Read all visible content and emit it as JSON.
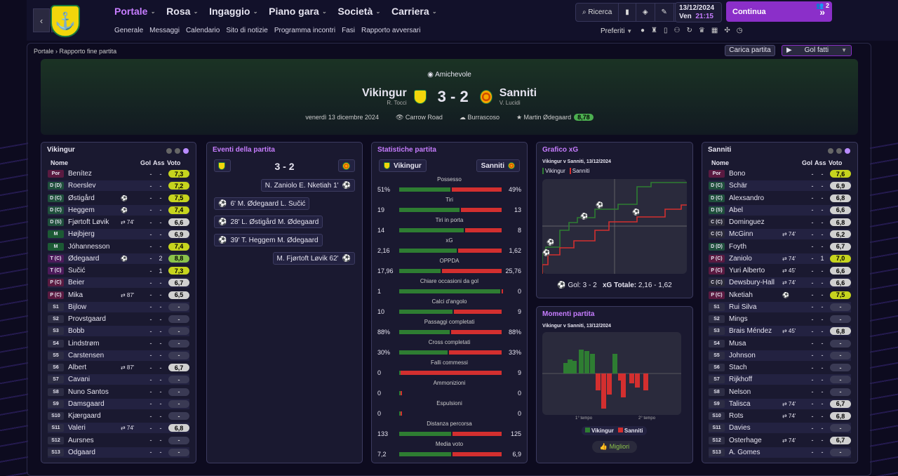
{
  "nav": {
    "menu": [
      "Portale",
      "Rosa",
      "Ingaggio",
      "Piano gara",
      "Società",
      "Carriera"
    ],
    "sub": [
      "Generale",
      "Messaggi",
      "Calendario",
      "Sito di notizie",
      "Programma incontri",
      "Fasi",
      "Rapporto avversari"
    ],
    "search": "Ricerca",
    "date": "13/12/2024",
    "day": "Ven",
    "time": "21:15",
    "continue": "Continua",
    "badge": "2",
    "prefs": "Preferiti"
  },
  "breadcrumb": [
    "Portale",
    "Rapporto fine partita"
  ],
  "buttons": {
    "load": "Carica partita",
    "goals": "Gol fatti"
  },
  "match": {
    "competition": "Amichevole",
    "home": "Vikingur",
    "home_mgr": "R. Tocci",
    "away": "Sanniti",
    "away_mgr": "V. Lucidi",
    "score": "3 - 2",
    "date": "venerdì 13 dicembre 2024",
    "venue": "Carrow Road",
    "weather": "Burrascoso",
    "potm": "Martin Ødegaard",
    "potm_rating": "8,78"
  },
  "home_panel": {
    "title": "Vikingur",
    "headers": [
      "Nome",
      "Gol",
      "Ass",
      "Voto"
    ],
    "players": [
      {
        "pos": "Por",
        "name": "Benítez",
        "ev": "",
        "g": "-",
        "a": "-",
        "r": "7,3",
        "c": "y"
      },
      {
        "pos": "D (D)",
        "name": "Roerslev",
        "ev": "",
        "g": "-",
        "a": "-",
        "r": "7,2",
        "c": "y"
      },
      {
        "pos": "D (C)",
        "name": "Østigård",
        "ev": "⚽",
        "g": "-",
        "a": "-",
        "r": "7,5",
        "c": "y"
      },
      {
        "pos": "D (C)",
        "name": "Heggem",
        "ev": "⚽",
        "g": "-",
        "a": "-",
        "r": "7,4",
        "c": "y"
      },
      {
        "pos": "D (S)",
        "name": "Fjørtoft Løvik",
        "ev": "⇄ 74'",
        "g": "-",
        "a": "-",
        "r": "6,6",
        "c": "w"
      },
      {
        "pos": "M",
        "name": "Højbjerg",
        "ev": "",
        "g": "-",
        "a": "-",
        "r": "6,9",
        "c": "w"
      },
      {
        "pos": "M",
        "name": "Jóhannesson",
        "ev": "",
        "g": "-",
        "a": "-",
        "r": "7,4",
        "c": "y"
      },
      {
        "pos": "T (C)",
        "name": "Ødegaard",
        "ev": "⚽",
        "g": "-",
        "a": "2",
        "r": "8,8",
        "c": "g2"
      },
      {
        "pos": "T (C)",
        "name": "Sučić",
        "ev": "",
        "g": "-",
        "a": "1",
        "r": "7,3",
        "c": "y"
      },
      {
        "pos": "P (C)",
        "name": "Beier",
        "ev": "",
        "g": "-",
        "a": "-",
        "r": "6,7",
        "c": "w"
      },
      {
        "pos": "P (C)",
        "name": "Mika",
        "ev": "⇄ 87'",
        "g": "-",
        "a": "-",
        "r": "6,5",
        "c": "w"
      },
      {
        "pos": "S1",
        "name": "Bijlow",
        "ev": "",
        "g": "-",
        "a": "-",
        "r": "-",
        "c": "w"
      },
      {
        "pos": "S2",
        "name": "Provstgaard",
        "ev": "",
        "g": "-",
        "a": "-",
        "r": "-",
        "c": "w"
      },
      {
        "pos": "S3",
        "name": "Bobb",
        "ev": "",
        "g": "-",
        "a": "-",
        "r": "-",
        "c": "w"
      },
      {
        "pos": "S4",
        "name": "Lindstrøm",
        "ev": "",
        "g": "-",
        "a": "-",
        "r": "-",
        "c": "w"
      },
      {
        "pos": "S5",
        "name": "Carstensen",
        "ev": "",
        "g": "-",
        "a": "-",
        "r": "-",
        "c": "w"
      },
      {
        "pos": "S6",
        "name": "Albert",
        "ev": "⇄ 87'",
        "g": "-",
        "a": "-",
        "r": "6,7",
        "c": "w"
      },
      {
        "pos": "S7",
        "name": "Cavani",
        "ev": "",
        "g": "-",
        "a": "-",
        "r": "-",
        "c": "w"
      },
      {
        "pos": "S8",
        "name": "Nuno Santos",
        "ev": "",
        "g": "-",
        "a": "-",
        "r": "-",
        "c": "w"
      },
      {
        "pos": "S9",
        "name": "Damsgaard",
        "ev": "",
        "g": "-",
        "a": "-",
        "r": "-",
        "c": "w"
      },
      {
        "pos": "S10",
        "name": "Kjærgaard",
        "ev": "",
        "g": "-",
        "a": "-",
        "r": "-",
        "c": "w"
      },
      {
        "pos": "S11",
        "name": "Valeri",
        "ev": "⇄ 74'",
        "g": "-",
        "a": "-",
        "r": "6,8",
        "c": "w"
      },
      {
        "pos": "S12",
        "name": "Aursnes",
        "ev": "",
        "g": "-",
        "a": "-",
        "r": "-",
        "c": "w"
      },
      {
        "pos": "S13",
        "name": "Odgaard",
        "ev": "",
        "g": "-",
        "a": "-",
        "r": "-",
        "c": "w"
      }
    ]
  },
  "away_panel": {
    "title": "Sanniti",
    "headers": [
      "Nome",
      "Gol",
      "Ass",
      "Voto"
    ],
    "players": [
      {
        "pos": "Por",
        "name": "Bono",
        "ev": "",
        "g": "-",
        "a": "-",
        "r": "7,6",
        "c": "y"
      },
      {
        "pos": "D (C)",
        "name": "Schär",
        "ev": "",
        "g": "-",
        "a": "-",
        "r": "6,9",
        "c": "w"
      },
      {
        "pos": "D (C)",
        "name": "Alexsandro",
        "ev": "",
        "g": "-",
        "a": "-",
        "r": "6,8",
        "c": "w"
      },
      {
        "pos": "D (S)",
        "name": "Abel",
        "ev": "",
        "g": "-",
        "a": "-",
        "r": "6,6",
        "c": "w"
      },
      {
        "pos": "C (C)",
        "name": "Dominguez",
        "ev": "",
        "g": "-",
        "a": "-",
        "r": "6,8",
        "c": "w"
      },
      {
        "pos": "C (C)",
        "name": "McGinn",
        "ev": "⇄ 74'",
        "g": "-",
        "a": "-",
        "r": "6,2",
        "c": "w"
      },
      {
        "pos": "D (D)",
        "name": "Foyth",
        "ev": "",
        "g": "-",
        "a": "-",
        "r": "6,7",
        "c": "w"
      },
      {
        "pos": "P (C)",
        "name": "Zaniolo",
        "ev": "⇄ 74'",
        "g": "-",
        "a": "1",
        "r": "7,0",
        "c": "y"
      },
      {
        "pos": "P (C)",
        "name": "Yuri Alberto",
        "ev": "⇄ 45'",
        "g": "-",
        "a": "-",
        "r": "6,6",
        "c": "w"
      },
      {
        "pos": "C (C)",
        "name": "Dewsbury-Hall",
        "ev": "⇄ 74'",
        "g": "-",
        "a": "-",
        "r": "6,6",
        "c": "w"
      },
      {
        "pos": "P (C)",
        "name": "Nketiah",
        "ev": "⚽",
        "g": "-",
        "a": "-",
        "r": "7,5",
        "c": "y"
      },
      {
        "pos": "S1",
        "name": "Rui Silva",
        "ev": "",
        "g": "-",
        "a": "-",
        "r": "-",
        "c": "w"
      },
      {
        "pos": "S2",
        "name": "Mings",
        "ev": "",
        "g": "-",
        "a": "-",
        "r": "-",
        "c": "w"
      },
      {
        "pos": "S3",
        "name": "Brais Méndez",
        "ev": "⇄ 45'",
        "g": "-",
        "a": "-",
        "r": "6,8",
        "c": "w"
      },
      {
        "pos": "S4",
        "name": "Musa",
        "ev": "",
        "g": "-",
        "a": "-",
        "r": "-",
        "c": "w"
      },
      {
        "pos": "S5",
        "name": "Johnson",
        "ev": "",
        "g": "-",
        "a": "-",
        "r": "-",
        "c": "w"
      },
      {
        "pos": "S6",
        "name": "Stach",
        "ev": "",
        "g": "-",
        "a": "-",
        "r": "-",
        "c": "w"
      },
      {
        "pos": "S7",
        "name": "Rijkhoff",
        "ev": "",
        "g": "-",
        "a": "-",
        "r": "-",
        "c": "w"
      },
      {
        "pos": "S8",
        "name": "Nelson",
        "ev": "",
        "g": "-",
        "a": "-",
        "r": "-",
        "c": "w"
      },
      {
        "pos": "S9",
        "name": "Talisca",
        "ev": "⇄ 74'",
        "g": "-",
        "a": "-",
        "r": "6,7",
        "c": "w"
      },
      {
        "pos": "S10",
        "name": "Rots",
        "ev": "⇄ 74'",
        "g": "-",
        "a": "-",
        "r": "6,8",
        "c": "w"
      },
      {
        "pos": "S11",
        "name": "Davies",
        "ev": "",
        "g": "-",
        "a": "-",
        "r": "-",
        "c": "w"
      },
      {
        "pos": "S12",
        "name": "Osterhage",
        "ev": "⇄ 74'",
        "g": "-",
        "a": "-",
        "r": "6,7",
        "c": "w"
      },
      {
        "pos": "S13",
        "name": "A. Gomes",
        "ev": "",
        "g": "-",
        "a": "-",
        "r": "-",
        "c": "w"
      }
    ]
  },
  "events": {
    "title": "Eventi della partita",
    "score": "3 - 2",
    "list": [
      {
        "side": "away",
        "text": "N. Zaniolo E. Nketiah 1'"
      },
      {
        "side": "home",
        "text": "6' M. Ødegaard L. Sučić"
      },
      {
        "side": "home",
        "text": "28' L. Østigård M. Ødegaard"
      },
      {
        "side": "home",
        "text": "39' T. Heggem M. Ødegaard"
      },
      {
        "side": "away",
        "text": "M. Fjørtoft Løvik 62'"
      }
    ]
  },
  "stats": {
    "title": "Statistiche partita",
    "home": "Vikingur",
    "away": "Sanniti",
    "rows": [
      {
        "label": "Possesso",
        "h": "51%",
        "a": "49%",
        "hv": 51,
        "av": 49
      },
      {
        "label": "Tiri",
        "h": "19",
        "a": "13",
        "hv": 19,
        "av": 13
      },
      {
        "label": "Tiri in porta",
        "h": "14",
        "a": "8",
        "hv": 14,
        "av": 8
      },
      {
        "label": "xG",
        "h": "2,16",
        "a": "1,62",
        "hv": 2.16,
        "av": 1.62
      },
      {
        "label": "OPPDA",
        "h": "17,96",
        "a": "25,76",
        "hv": 17.96,
        "av": 25.76
      },
      {
        "label": "Chiare occasioni da gol",
        "h": "1",
        "a": "0",
        "hv": 1,
        "av": 0
      },
      {
        "label": "Calci d'angolo",
        "h": "10",
        "a": "9",
        "hv": 10,
        "av": 9
      },
      {
        "label": "Passaggi completati",
        "h": "88%",
        "a": "88%",
        "hv": 88,
        "av": 88
      },
      {
        "label": "Cross completati",
        "h": "30%",
        "a": "33%",
        "hv": 30,
        "av": 33
      },
      {
        "label": "Falli commessi",
        "h": "0",
        "a": "9",
        "hv": 0,
        "av": 9
      },
      {
        "label": "Ammonizioni",
        "h": "0",
        "a": "0",
        "hv": 0,
        "av": 0
      },
      {
        "label": "Espulsioni",
        "h": "0",
        "a": "0",
        "hv": 0,
        "av": 0
      },
      {
        "label": "Distanza percorsa",
        "h": "133",
        "a": "125",
        "hv": 133,
        "av": 125
      },
      {
        "label": "Media voto",
        "h": "7,2",
        "a": "6,9",
        "hv": 7.2,
        "av": 6.9
      }
    ]
  },
  "xg": {
    "title": "Grafico xG",
    "subtitle": "Vikingur v Sanniti, 13/12/2024",
    "legend_home": "Vikingur",
    "legend_away": "Sanniti",
    "goals_label": "Gol:",
    "goals": "3 - 2",
    "xg_label": "xG Totale:",
    "xg_total": "2,16 - 1,62"
  },
  "momentum": {
    "title": "Momenti partita",
    "subtitle": "Vikingur v Sanniti, 13/12/2024",
    "half1": "1° tempo",
    "half2": "2° tempo",
    "legend_home": "Vikingur",
    "legend_away": "Sanniti",
    "button": "Migliori"
  },
  "colors": {
    "home": "#2e7d32",
    "away": "#d32f2f",
    "accent": "#c77dff"
  }
}
